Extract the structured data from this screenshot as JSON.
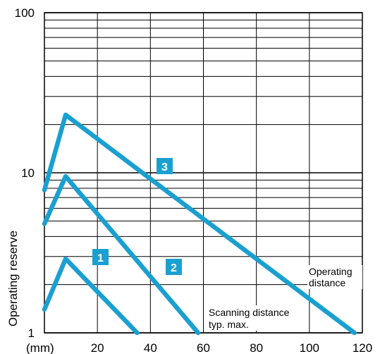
{
  "chart_data": {
    "type": "line",
    "xlabel": "(mm)",
    "ylabel": "Operating reserve",
    "x_ticks": [
      20,
      40,
      60,
      80,
      100,
      120
    ],
    "y_ticks": [
      1,
      10,
      100
    ],
    "xlim": [
      0,
      120
    ],
    "ylim": [
      1,
      100
    ],
    "y_scale": "log",
    "grid": true,
    "series_color": "#1aa0d0",
    "series": [
      {
        "name": "1",
        "x": [
          0,
          8,
          35
        ],
        "y": [
          1.4,
          2.9,
          1.0
        ]
      },
      {
        "name": "2",
        "x": [
          0,
          8,
          58
        ],
        "y": [
          4.8,
          9.5,
          1.0
        ]
      },
      {
        "name": "3",
        "x": [
          0,
          8,
          117
        ],
        "y": [
          7.8,
          23,
          1.0
        ]
      }
    ],
    "annotations": [
      {
        "lines": [
          "Operating",
          "distance"
        ]
      },
      {
        "lines": [
          "Scanning distance",
          "typ. max."
        ]
      }
    ]
  }
}
